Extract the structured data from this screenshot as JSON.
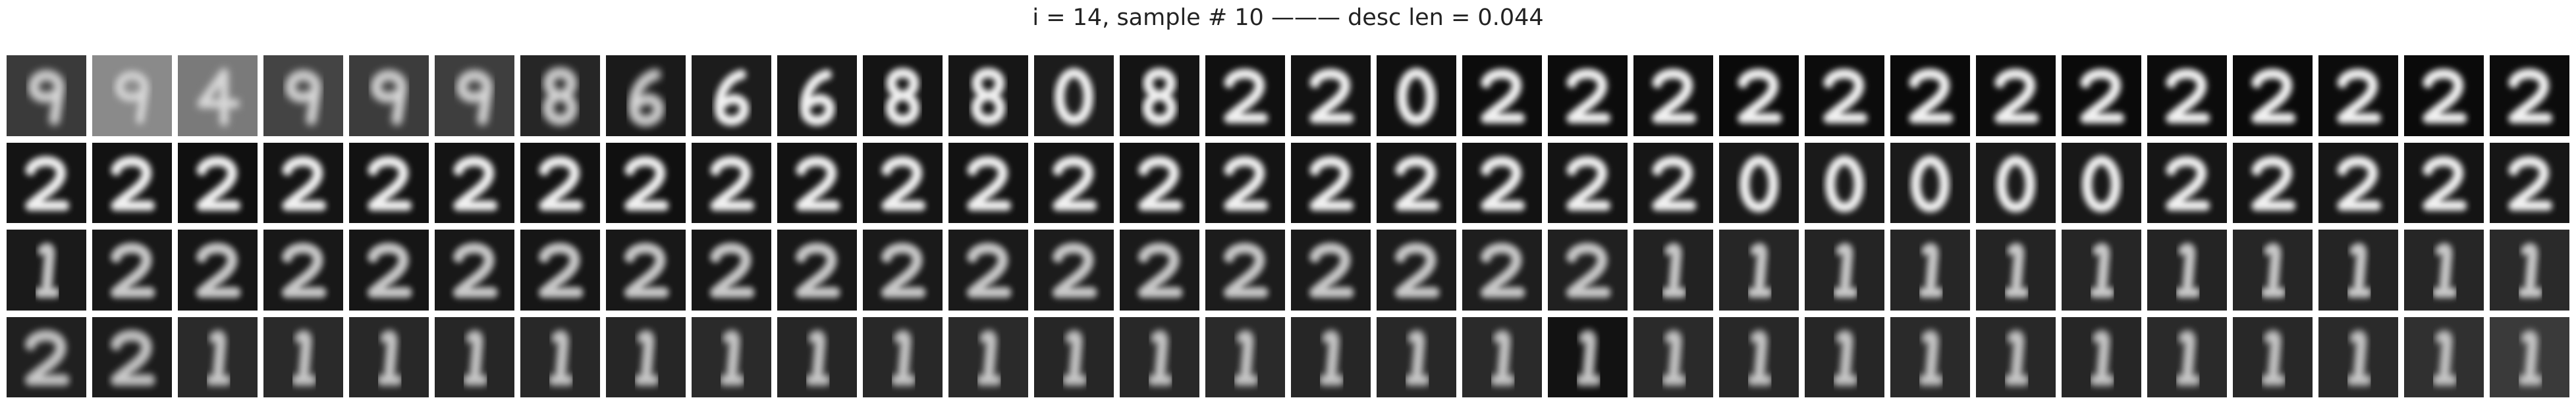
{
  "figure": {
    "title": "i = 14, sample # 10 ——— desc len = 0.044"
  },
  "grid": {
    "rows": 4,
    "columns": 30,
    "glyph_rows": [
      [
        "9",
        "9",
        "4",
        "9",
        "9",
        "9",
        "8",
        "6",
        "6",
        "6",
        "8",
        "8",
        "0",
        "8",
        "2",
        "2",
        "0",
        "2",
        "2",
        "2",
        "2",
        "2",
        "2",
        "2",
        "2",
        "2",
        "2",
        "2",
        "2",
        "2"
      ],
      [
        "2",
        "2",
        "2",
        "2",
        "2",
        "2",
        "2",
        "2",
        "2",
        "2",
        "2",
        "2",
        "2",
        "2",
        "2",
        "2",
        "2",
        "2",
        "2",
        "2",
        "0",
        "0",
        "0",
        "0",
        "0",
        "2",
        "2",
        "2",
        "2",
        "2"
      ],
      [
        "1",
        "2",
        "2",
        "2",
        "2",
        "2",
        "2",
        "2",
        "2",
        "2",
        "2",
        "2",
        "2",
        "2",
        "2",
        "2",
        "2",
        "2",
        "2",
        "1",
        "1",
        "1",
        "1",
        "1",
        "1",
        "1",
        "1",
        "1",
        "1",
        "1"
      ],
      [
        "2",
        "2",
        "1",
        "1",
        "1",
        "1",
        "1",
        "1",
        "1",
        "1",
        "1",
        "1",
        "1",
        "1",
        "1",
        "1",
        "1",
        "1",
        "1",
        "1",
        "1",
        "1",
        "1",
        "1",
        "1",
        "1",
        "1",
        "1",
        "1",
        "1"
      ]
    ],
    "background_tones": [
      [
        "#3a3a3a",
        "#8a8a8a",
        "#7a7a7a",
        "#444444",
        "#3c3c3c",
        "#3e3e3e",
        "#262626",
        "#1a1a1a",
        "#1c1c1c",
        "#181818",
        "#141414",
        "#161616",
        "#1c1c1c",
        "#141414",
        "#101010",
        "#121212",
        "#101010",
        "#0c0c0c",
        "#0c0c0c",
        "#0e0e0e",
        "#0a0a0a",
        "#0c0c0c",
        "#0a0a0a",
        "#0c0c0c",
        "#0a0a0a",
        "#0c0c0c",
        "#0a0a0a",
        "#0c0c0c",
        "#0a0a0a",
        "#0c0c0c"
      ],
      [
        "#141414",
        "#121212",
        "#101010",
        "#141414",
        "#121212",
        "#141414",
        "#121212",
        "#101010",
        "#141414",
        "#121212",
        "#141414",
        "#121212",
        "#141414",
        "#121212",
        "#141414",
        "#121212",
        "#141414",
        "#121212",
        "#141414",
        "#161616",
        "#181818",
        "#1a1a1a",
        "#1a1a1a",
        "#1a1a1a",
        "#181818",
        "#161616",
        "#141414",
        "#161616",
        "#141414",
        "#161616"
      ],
      [
        "#1a1a1a",
        "#181818",
        "#161616",
        "#181818",
        "#161616",
        "#181818",
        "#161616",
        "#181818",
        "#161616",
        "#181818",
        "#1a1a1a",
        "#1a1a1a",
        "#1c1c1c",
        "#1a1a1a",
        "#1c1c1c",
        "#1a1a1a",
        "#1c1c1c",
        "#1e1e1e",
        "#202020",
        "#222222",
        "#262626",
        "#242424",
        "#262626",
        "#242424",
        "#262626",
        "#242424",
        "#262626",
        "#242424",
        "#262626",
        "#2a2a2a"
      ],
      [
        "#202020",
        "#1c1c1c",
        "#2a2a2a",
        "#2a2a2a",
        "#282828",
        "#262626",
        "#282828",
        "#262626",
        "#2a2a2a",
        "#262626",
        "#282828",
        "#2a2a2a",
        "#262626",
        "#282828",
        "#2a2a2a",
        "#262626",
        "#282828",
        "#2a2a2a",
        "#121212",
        "#2a2a2a",
        "#282828",
        "#262626",
        "#2a2a2a",
        "#282828",
        "#262626",
        "#2a2a2a",
        "#282828",
        "#2a2a2a",
        "#303030",
        "#3a3a3a"
      ]
    ]
  }
}
